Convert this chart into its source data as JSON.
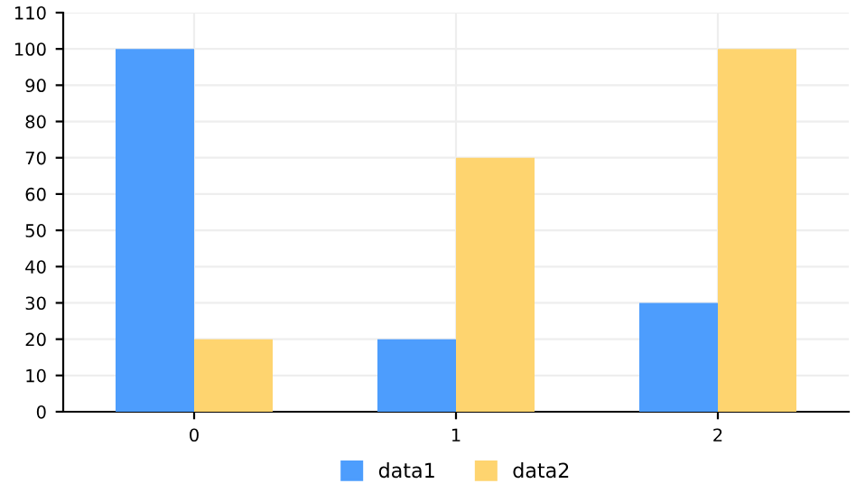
{
  "chart_data": {
    "type": "bar",
    "categories": [
      "0",
      "1",
      "2"
    ],
    "series": [
      {
        "name": "data1",
        "color": "#4d9dfd",
        "values": [
          100,
          20,
          30
        ]
      },
      {
        "name": "data2",
        "color": "#fed46f",
        "values": [
          20,
          70,
          100
        ]
      }
    ],
    "ylim": [
      0,
      110
    ],
    "yticks": [
      0,
      10,
      20,
      30,
      40,
      50,
      60,
      70,
      80,
      90,
      100,
      110
    ],
    "grid": true,
    "legend": "bottom"
  }
}
